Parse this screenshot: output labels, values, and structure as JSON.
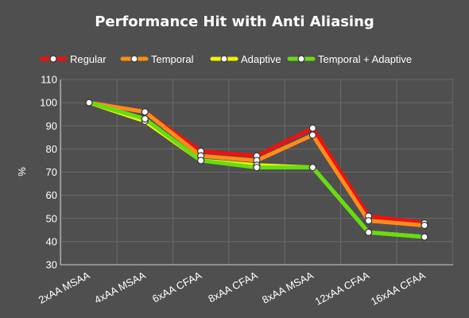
{
  "chart_data": {
    "type": "line",
    "title": "Performance Hit with Anti Aliasing",
    "xlabel": "",
    "ylabel": "%",
    "categories": [
      "2xAA MSAA",
      "4xAA MSAA",
      "6xAA CFAA",
      "8xAA CFAA",
      "8xAA MSAA",
      "12xAA CFAA",
      "16xAA CFAA"
    ],
    "ylim": [
      30,
      110
    ],
    "yticks": [
      30,
      40,
      50,
      60,
      70,
      80,
      90,
      100,
      110
    ],
    "grid": true,
    "legend_position": "top",
    "series": [
      {
        "name": "Regular",
        "color": "#ee1111",
        "values": [
          100,
          96,
          79,
          77,
          89,
          51,
          48
        ]
      },
      {
        "name": "Temporal",
        "color": "#ff8c1a",
        "values": [
          100,
          96,
          77,
          75,
          86,
          49,
          47
        ]
      },
      {
        "name": "Adaptive",
        "color": "#f2f200",
        "values": [
          100,
          92,
          75,
          73,
          72,
          44,
          42
        ]
      },
      {
        "name": "Temporal + Adaptive",
        "color": "#66dd11",
        "values": [
          100,
          93,
          75,
          72,
          72,
          44,
          42
        ]
      }
    ]
  }
}
